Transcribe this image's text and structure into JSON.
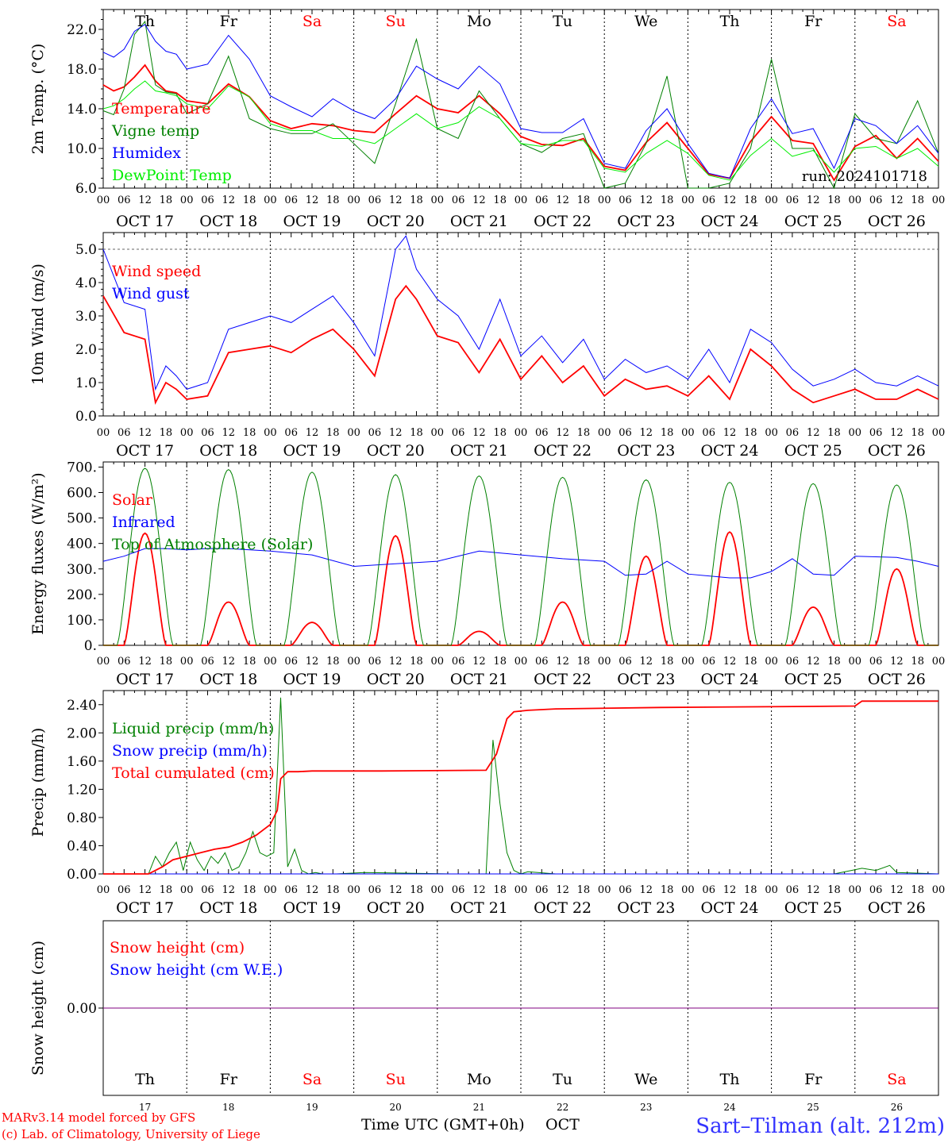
{
  "day_names": [
    "Th",
    "Fr",
    "Sa",
    "Su",
    "Mo",
    "Tu",
    "We",
    "Th",
    "Fr",
    "Sa"
  ],
  "day_name_colors": [
    "#000000",
    "#000000",
    "#ff0000",
    "#ff0000",
    "#000000",
    "#000000",
    "#000000",
    "#000000",
    "#000000",
    "#ff0000"
  ],
  "date_labels": [
    "OCT 17",
    "OCT 18",
    "OCT 19",
    "OCT 20",
    "OCT 21",
    "OCT 22",
    "OCT 23",
    "OCT 24",
    "OCT 25",
    "OCT 26"
  ],
  "hour_ticks": [
    "00",
    "06",
    "12",
    "18"
  ],
  "hour_tick_end": "00",
  "bottom_day_numbers": [
    "17",
    "18",
    "19",
    "20",
    "21",
    "22",
    "23",
    "24",
    "25",
    "26"
  ],
  "x_title": "Time UTC (GMT+0h)",
  "x_month": "OCT",
  "credit_line1": "MARv3.14 model forced by GFS",
  "credit_line2": "(c) Lab. of Climatology, University of Liege",
  "station": "Sart–Tilman (alt. 212m)",
  "run_label": "run: 2024101718",
  "colors": {
    "red": "#ff0000",
    "green": "#008000",
    "blue": "#0000ff",
    "lightgreen": "#00ee00",
    "purple": "#800080"
  },
  "chart_data": [
    {
      "id": "temp",
      "type": "line",
      "ylabel": "2m Temp. (°C)",
      "ylim": [
        6,
        24
      ],
      "ytick_labels": [
        "6.0",
        "10.0",
        "14.0",
        "18.0",
        "22.0"
      ],
      "ytick_values": [
        6,
        10,
        14,
        18,
        22
      ],
      "x_unit": "hours since OCT 17 00 UTC",
      "x_range": [
        0,
        240
      ],
      "series": [
        {
          "name": "Temperature",
          "color": "#ff0000",
          "x": [
            0,
            3,
            6,
            9,
            12,
            15,
            18,
            21,
            24,
            30,
            36,
            42,
            48,
            54,
            60,
            66,
            72,
            78,
            84,
            90,
            96,
            102,
            108,
            114,
            120,
            126,
            132,
            138,
            144,
            150,
            156,
            162,
            168,
            174,
            180,
            186,
            192,
            198,
            204,
            210,
            216,
            222,
            228,
            234,
            240
          ],
          "y": [
            16.4,
            15.8,
            16.2,
            17.2,
            18.4,
            16.8,
            15.8,
            15.6,
            14.8,
            14.5,
            16.5,
            15.2,
            12.8,
            12.0,
            12.5,
            12.3,
            11.8,
            11.6,
            13.5,
            15.3,
            14.0,
            13.6,
            15.3,
            13.5,
            11.2,
            10.4,
            10.3,
            11.0,
            8.2,
            7.8,
            10.6,
            12.6,
            10.0,
            7.4,
            7.0,
            10.7,
            13.2,
            10.8,
            10.5,
            6.8,
            10.2,
            11.3,
            9.0,
            11.0,
            8.7
          ]
        },
        {
          "name": "Vigne temp",
          "color": "#008000",
          "x": [
            0,
            3,
            6,
            9,
            12,
            15,
            18,
            21,
            24,
            30,
            36,
            42,
            48,
            54,
            60,
            66,
            72,
            78,
            84,
            90,
            96,
            102,
            108,
            114,
            120,
            126,
            132,
            138,
            144,
            150,
            156,
            162,
            168,
            174,
            180,
            186,
            192,
            198,
            204,
            210,
            216,
            222,
            228,
            234,
            240
          ],
          "y": [
            13.8,
            13.4,
            16.0,
            21.5,
            22.8,
            16.4,
            15.7,
            15.5,
            13.5,
            14.5,
            19.3,
            13.0,
            12.0,
            11.5,
            11.5,
            12.5,
            10.5,
            8.5,
            14.5,
            21.0,
            12.0,
            11.0,
            15.8,
            13.0,
            10.5,
            9.6,
            11.0,
            11.5,
            5.0,
            6.5,
            10.5,
            17.3,
            5.0,
            6.0,
            6.5,
            10.0,
            19.0,
            10.0,
            10.0,
            4.0,
            13.5,
            11.0,
            10.5,
            14.8,
            9.5
          ]
        },
        {
          "name": "Humidex",
          "color": "#0000ff",
          "x": [
            0,
            3,
            6,
            9,
            12,
            15,
            18,
            21,
            24,
            30,
            36,
            42,
            48,
            54,
            60,
            66,
            72,
            78,
            84,
            90,
            96,
            102,
            108,
            114,
            120,
            126,
            132,
            138,
            144,
            150,
            156,
            162,
            168,
            174,
            180,
            186,
            192,
            198,
            204,
            210,
            216,
            222,
            228,
            234,
            240
          ],
          "y": [
            19.7,
            19.2,
            20.0,
            21.8,
            22.5,
            20.8,
            19.8,
            19.5,
            18.0,
            18.5,
            21.4,
            19.0,
            15.3,
            14.2,
            13.2,
            15.0,
            13.8,
            13.0,
            15.0,
            18.3,
            17.0,
            16.0,
            18.3,
            16.5,
            12.0,
            11.6,
            11.6,
            13.0,
            8.5,
            8.0,
            11.8,
            14.0,
            10.5,
            7.5,
            7.0,
            12.0,
            15.0,
            11.5,
            12.0,
            8.0,
            13.0,
            12.3,
            10.5,
            12.3,
            9.5
          ]
        },
        {
          "name": "DewPoint Temp",
          "color": "#00ee00",
          "x": [
            0,
            3,
            6,
            9,
            12,
            15,
            18,
            21,
            24,
            30,
            36,
            42,
            48,
            54,
            60,
            66,
            72,
            78,
            84,
            90,
            96,
            102,
            108,
            114,
            120,
            126,
            132,
            138,
            144,
            150,
            156,
            162,
            168,
            174,
            180,
            186,
            192,
            198,
            204,
            210,
            216,
            222,
            228,
            234,
            240
          ],
          "y": [
            14.0,
            14.3,
            15.0,
            16.0,
            16.8,
            15.8,
            15.6,
            15.3,
            14.5,
            14.0,
            16.3,
            15.2,
            12.5,
            11.8,
            11.8,
            11.0,
            11.0,
            10.5,
            12.0,
            13.5,
            12.0,
            12.6,
            14.2,
            13.0,
            10.5,
            10.2,
            10.8,
            10.8,
            8.0,
            7.6,
            9.5,
            10.8,
            9.5,
            7.3,
            6.8,
            9.3,
            11.0,
            9.2,
            9.8,
            7.6,
            10.0,
            10.2,
            9.0,
            10.0,
            8.2
          ]
        }
      ]
    },
    {
      "id": "wind",
      "type": "line",
      "ylabel": "10m Wind (m/s)",
      "ylim": [
        0,
        5.5
      ],
      "ytick_labels": [
        "0.0",
        "1.0",
        "2.0",
        "3.0",
        "4.0",
        "5.0"
      ],
      "ytick_values": [
        0,
        1,
        2,
        3,
        4,
        5
      ],
      "x_unit": "hours since OCT 17 00 UTC",
      "x_range": [
        0,
        240
      ],
      "series": [
        {
          "name": "Wind speed",
          "color": "#ff0000",
          "x": [
            0,
            6,
            12,
            15,
            18,
            21,
            24,
            30,
            36,
            42,
            48,
            54,
            60,
            66,
            72,
            78,
            84,
            87,
            90,
            96,
            102,
            108,
            114,
            120,
            126,
            132,
            138,
            144,
            150,
            156,
            162,
            168,
            174,
            180,
            186,
            192,
            198,
            204,
            210,
            216,
            222,
            228,
            234,
            240
          ],
          "y": [
            3.6,
            2.5,
            2.3,
            0.4,
            1.0,
            0.8,
            0.5,
            0.6,
            1.9,
            2.0,
            2.1,
            1.9,
            2.3,
            2.6,
            2.0,
            1.2,
            3.5,
            3.9,
            3.5,
            2.4,
            2.2,
            1.3,
            2.3,
            1.1,
            1.8,
            1.0,
            1.5,
            0.6,
            1.1,
            0.8,
            0.9,
            0.6,
            1.2,
            0.5,
            2.0,
            1.5,
            0.8,
            0.4,
            0.6,
            0.8,
            0.5,
            0.5,
            0.8,
            0.5
          ]
        },
        {
          "name": "Wind gust",
          "color": "#0000ff",
          "x": [
            0,
            6,
            12,
            15,
            18,
            21,
            24,
            30,
            36,
            42,
            48,
            54,
            60,
            66,
            72,
            78,
            84,
            87,
            90,
            96,
            102,
            108,
            114,
            120,
            126,
            132,
            138,
            144,
            150,
            156,
            162,
            168,
            174,
            180,
            186,
            192,
            198,
            204,
            210,
            216,
            222,
            228,
            234,
            240
          ],
          "y": [
            5.0,
            3.4,
            3.2,
            0.8,
            1.5,
            1.2,
            0.8,
            1.0,
            2.6,
            2.8,
            3.0,
            2.8,
            3.2,
            3.6,
            2.8,
            1.8,
            5.0,
            5.4,
            4.4,
            3.5,
            3.0,
            2.0,
            3.5,
            1.8,
            2.4,
            1.6,
            2.3,
            1.1,
            1.7,
            1.3,
            1.5,
            1.1,
            2.0,
            1.0,
            2.6,
            2.2,
            1.4,
            0.9,
            1.1,
            1.4,
            1.0,
            0.9,
            1.2,
            0.9
          ]
        }
      ]
    },
    {
      "id": "flux",
      "type": "line",
      "ylabel": "Energy fluxes (W/m²)",
      "ylim": [
        0,
        720
      ],
      "ytick_labels": [
        "0.",
        "100.",
        "200.",
        "300.",
        "400.",
        "500.",
        "600.",
        "700."
      ],
      "ytick_values": [
        0,
        100,
        200,
        300,
        400,
        500,
        600,
        700
      ],
      "x_unit": "hours since OCT 17 00 UTC",
      "x_range": [
        0,
        240
      ],
      "series": [
        {
          "name": "Solar",
          "color": "#ff0000",
          "peaks": [
            {
              "day": 0,
              "max": 440
            },
            {
              "day": 1,
              "max": 170
            },
            {
              "day": 2,
              "max": 90
            },
            {
              "day": 3,
              "max": 430
            },
            {
              "day": 4,
              "max": 55
            },
            {
              "day": 5,
              "max": 170
            },
            {
              "day": 6,
              "max": 350
            },
            {
              "day": 7,
              "max": 445
            },
            {
              "day": 8,
              "max": 150
            },
            {
              "day": 9,
              "max": 300
            }
          ]
        },
        {
          "name": "Infrared",
          "color": "#0000ff",
          "x": [
            0,
            6,
            12,
            18,
            24,
            30,
            36,
            48,
            60,
            72,
            84,
            96,
            108,
            120,
            132,
            144,
            150,
            156,
            162,
            168,
            180,
            186,
            192,
            198,
            204,
            210,
            216,
            228,
            234,
            240
          ],
          "y": [
            330,
            350,
            380,
            380,
            375,
            380,
            380,
            370,
            355,
            310,
            320,
            330,
            370,
            355,
            340,
            330,
            275,
            280,
            330,
            280,
            265,
            265,
            290,
            340,
            280,
            275,
            350,
            345,
            330,
            310
          ]
        },
        {
          "name": "Top of Atmosphere (Solar)",
          "color": "#008000",
          "peaks": [
            {
              "day": 0,
              "max": 695
            },
            {
              "day": 1,
              "max": 690
            },
            {
              "day": 2,
              "max": 680
            },
            {
              "day": 3,
              "max": 670
            },
            {
              "day": 4,
              "max": 665
            },
            {
              "day": 5,
              "max": 660
            },
            {
              "day": 6,
              "max": 650
            },
            {
              "day": 7,
              "max": 640
            },
            {
              "day": 8,
              "max": 635
            },
            {
              "day": 9,
              "max": 630
            }
          ]
        }
      ]
    },
    {
      "id": "precip",
      "type": "line",
      "ylabel": "Precip (mm/h)",
      "ylim": [
        0,
        2.6
      ],
      "ytick_labels": [
        "0.00",
        "0.40",
        "0.80",
        "1.20",
        "1.60",
        "2.00",
        "2.40"
      ],
      "ytick_values": [
        0,
        0.4,
        0.8,
        1.2,
        1.6,
        2.0,
        2.4
      ],
      "x_unit": "hours since OCT 17 00 UTC",
      "x_range": [
        0,
        240
      ],
      "series": [
        {
          "name": "Liquid precip (mm/h)",
          "color": "#008000",
          "x": [
            0,
            13,
            15,
            17,
            19,
            21,
            23,
            25,
            27,
            29,
            31,
            33,
            35,
            37,
            39,
            41,
            43,
            45,
            47,
            49,
            51,
            53,
            55,
            57,
            59,
            61,
            63,
            65,
            67,
            75,
            100,
            110,
            112,
            114,
            116,
            118,
            120,
            122,
            130,
            140,
            162,
            180,
            210,
            215,
            218,
            222,
            226,
            228,
            240
          ],
          "y": [
            0,
            0,
            0.25,
            0.1,
            0.3,
            0.45,
            0.05,
            0.45,
            0.2,
            0.05,
            0.25,
            0.15,
            0.3,
            0.05,
            0.1,
            0.3,
            0.6,
            0.3,
            0.25,
            0.3,
            2.5,
            0.1,
            0.35,
            0.05,
            0,
            0.02,
            0,
            0,
            0,
            0.02,
            0,
            0,
            1.9,
            1.0,
            0.3,
            0.05,
            0,
            0.03,
            0,
            0,
            0,
            0,
            0,
            0.05,
            0.08,
            0.05,
            0.12,
            0.02,
            0
          ]
        },
        {
          "name": "Snow precip (mm/h)",
          "color": "#0000ff",
          "x": [
            0,
            240
          ],
          "y": [
            0,
            0
          ]
        },
        {
          "name": "Total cumulated (cm)",
          "color": "#ff0000",
          "x": [
            0,
            13,
            15,
            17,
            20,
            24,
            28,
            32,
            36,
            40,
            44,
            48,
            50,
            51,
            53,
            56,
            60,
            80,
            110,
            113,
            116,
            118,
            122,
            130,
            160,
            190,
            216,
            218,
            240
          ],
          "y": [
            0,
            0,
            0.05,
            0.1,
            0.2,
            0.25,
            0.3,
            0.35,
            0.38,
            0.45,
            0.55,
            0.7,
            0.9,
            1.35,
            1.45,
            1.45,
            1.46,
            1.46,
            1.47,
            1.7,
            2.2,
            2.3,
            2.32,
            2.34,
            2.36,
            2.37,
            2.38,
            2.45,
            2.45
          ]
        }
      ]
    },
    {
      "id": "snow",
      "type": "line",
      "ylabel": "Snow height (cm)",
      "ylim": [
        -1,
        1
      ],
      "ytick_labels": [
        "0.00"
      ],
      "ytick_values": [
        0
      ],
      "x_unit": "hours since OCT 17 00 UTC",
      "x_range": [
        0,
        240
      ],
      "series": [
        {
          "name": "Snow height (cm)",
          "color": "#ff0000",
          "x": [
            0,
            240
          ],
          "y": [
            0,
            0
          ]
        },
        {
          "name": "Snow height (cm W.E.)",
          "color": "#0000ff",
          "x": [
            0,
            240
          ],
          "y": [
            0,
            0
          ]
        }
      ]
    }
  ]
}
